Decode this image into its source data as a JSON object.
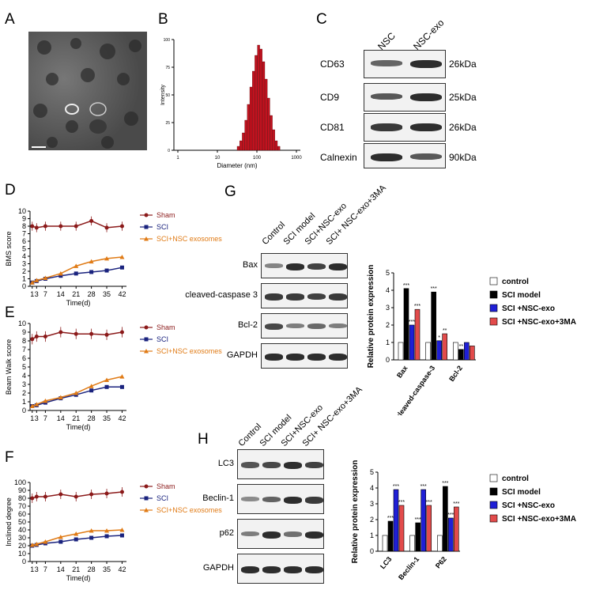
{
  "panels": {
    "A": "A",
    "B": "B",
    "C": "C",
    "D": "D",
    "E": "E",
    "F": "F",
    "G": "G",
    "H": "H"
  },
  "panel_b": {
    "xlabel": "Diameter (nm)",
    "ylabel": "Intensity",
    "xticks": [
      "1",
      "10",
      "100",
      "1000"
    ],
    "yticks": [
      "0",
      "25",
      "50",
      "75",
      "100"
    ]
  },
  "panel_c": {
    "lanes": [
      "NSC",
      "NSC-exo"
    ],
    "rows": [
      {
        "label": "CD63",
        "kda": "26kDa"
      },
      {
        "label": "CD9",
        "kda": "25kDa"
      },
      {
        "label": "CD81",
        "kda": "26kDa"
      },
      {
        "label": "Calnexin",
        "kda": "90kDa"
      }
    ]
  },
  "panel_g_blot": {
    "lanes": [
      "Control",
      "SCI model",
      "SCI+NSC-exo",
      "SCI+ NSC-exo+3MA"
    ],
    "rows": [
      "Bax",
      "cleaved-caspase 3",
      "Bcl-2",
      "GAPDH"
    ]
  },
  "panel_h_blot": {
    "lanes": [
      "Control",
      "SCI model",
      "SCI+NSC-exo",
      "SCI+ NSC-exo+3MA"
    ],
    "rows": [
      "LC3",
      "Beclin-1",
      "p62",
      "GAPDH"
    ]
  },
  "colors": {
    "sham": "#8b1a1a",
    "sci": "#1a237e",
    "sci_exo": "#e07b16",
    "control_bar": "#ffffff",
    "sci_bar": "#000000",
    "exo_bar": "#1f1fd6",
    "ma_bar": "#e24b4b"
  },
  "chart_data": [
    {
      "id": "D",
      "type": "line",
      "ylabel": "BMS score",
      "xlabel": "Time(d)",
      "x": [
        1,
        3,
        7,
        14,
        21,
        28,
        35,
        42
      ],
      "ylim": [
        0,
        10
      ],
      "yticks": [
        0,
        1,
        2,
        3,
        4,
        5,
        6,
        7,
        8,
        9,
        10
      ],
      "series": [
        {
          "name": "Sham",
          "values": [
            8.0,
            7.8,
            8.0,
            8.0,
            8.0,
            8.7,
            7.8,
            8.0
          ]
        },
        {
          "name": "SCI",
          "values": [
            0.5,
            0.7,
            1.0,
            1.4,
            1.7,
            1.9,
            2.1,
            2.5
          ]
        },
        {
          "name": "SCI+NSC exosomes",
          "values": [
            0.5,
            0.8,
            1.1,
            1.7,
            2.7,
            3.3,
            3.7,
            3.9
          ]
        }
      ]
    },
    {
      "id": "E",
      "type": "line",
      "ylabel": "Beam Walk score",
      "xlabel": "Time(d)",
      "x": [
        1,
        3,
        7,
        14,
        21,
        28,
        35,
        42
      ],
      "ylim": [
        0,
        10
      ],
      "yticks": [
        0,
        1,
        2,
        3,
        4,
        5,
        6,
        7,
        8,
        9,
        10
      ],
      "series": [
        {
          "name": "Sham",
          "values": [
            8.2,
            8.5,
            8.5,
            9.0,
            8.8,
            8.8,
            8.7,
            9.0
          ]
        },
        {
          "name": "SCI",
          "values": [
            0.5,
            0.6,
            0.9,
            1.4,
            1.8,
            2.3,
            2.7,
            2.7
          ]
        },
        {
          "name": "SCI+NSC exosomes",
          "values": [
            0.5,
            0.7,
            1.1,
            1.5,
            2.0,
            2.8,
            3.5,
            3.9
          ]
        }
      ]
    },
    {
      "id": "F",
      "type": "line",
      "ylabel": "Inclined degree",
      "xlabel": "Time(d)",
      "x": [
        1,
        3,
        7,
        14,
        21,
        28,
        35,
        42
      ],
      "ylim": [
        0,
        100
      ],
      "yticks": [
        0,
        10,
        20,
        30,
        40,
        50,
        60,
        70,
        80,
        90,
        100
      ],
      "series": [
        {
          "name": "Sham",
          "values": [
            80,
            82,
            82,
            85,
            82,
            85,
            86,
            88
          ]
        },
        {
          "name": "SCI",
          "values": [
            20,
            21,
            23,
            25,
            28,
            30,
            32,
            33
          ]
        },
        {
          "name": "SCI+NSC exosomes",
          "values": [
            21,
            22,
            25,
            31,
            35,
            39,
            39,
            40
          ]
        }
      ]
    },
    {
      "id": "G",
      "type": "bar",
      "ylabel": "Relative protein expression",
      "categories": [
        "Bax",
        "cleaved-caspase-3",
        "Bcl-2"
      ],
      "ylim": [
        0,
        5
      ],
      "yticks": [
        0,
        1,
        2,
        3,
        4,
        5
      ],
      "series": [
        {
          "name": "control",
          "values": [
            1.0,
            1.0,
            1.0
          ]
        },
        {
          "name": "SCI model",
          "values": [
            4.1,
            3.9,
            0.6
          ]
        },
        {
          "name": "SCI +NSC-exo",
          "values": [
            2.0,
            1.1,
            1.0
          ]
        },
        {
          "name": "SCI +NSC-exo+3MA",
          "values": [
            2.9,
            1.5,
            0.8
          ]
        }
      ],
      "annotations": [
        [
          "",
          "***",
          "***",
          "***"
        ],
        [
          "",
          "***",
          "*",
          "**"
        ],
        [
          "",
          "**",
          "",
          ""
        ]
      ]
    },
    {
      "id": "H",
      "type": "bar",
      "ylabel": "Relative protein expression",
      "categories": [
        "LC3",
        "Beclin-1",
        "P62"
      ],
      "ylim": [
        0,
        5
      ],
      "yticks": [
        0,
        1,
        2,
        3,
        4,
        5
      ],
      "series": [
        {
          "name": "control",
          "values": [
            1.0,
            1.0,
            1.0
          ]
        },
        {
          "name": "SCI model",
          "values": [
            1.9,
            1.8,
            4.1
          ]
        },
        {
          "name": "SCI +NSC-exo",
          "values": [
            3.9,
            3.9,
            2.1
          ]
        },
        {
          "name": "SCI +NSC-exo+3MA",
          "values": [
            2.9,
            2.9,
            2.8
          ]
        }
      ],
      "annotations": [
        [
          "",
          "***",
          "***",
          "***"
        ],
        [
          "",
          "***",
          "***",
          "***"
        ],
        [
          "",
          "***",
          "***",
          "***"
        ]
      ]
    }
  ]
}
